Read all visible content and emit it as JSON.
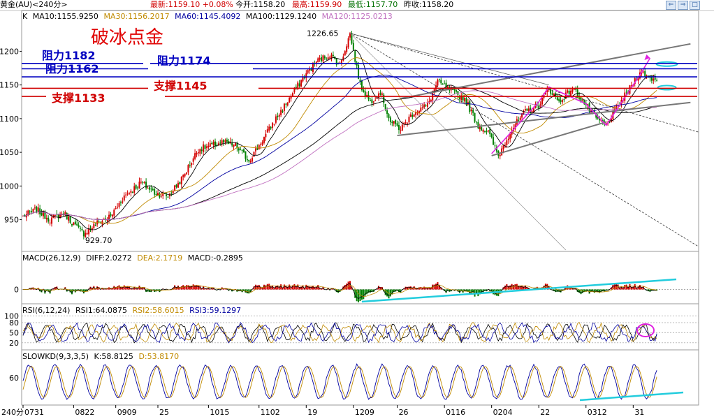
{
  "header": {
    "symbol": "黄金(AU)<240分>",
    "latest": "最新:1159.10 +0.08%",
    "open": "今开:1158.20",
    "high": "最高:1159.90",
    "low": "最低:1157.70",
    "prev_close": "昨收:1158.20"
  },
  "nav_buttons": [
    "⇐",
    "⇒",
    "□"
  ],
  "price_panel": {
    "label": "K",
    "ma": [
      {
        "text": "MA10:1155.9250",
        "color": "#000000"
      },
      {
        "text": "MA30:1156.2017",
        "color": "#c08a00"
      },
      {
        "text": "MA60:1145.4092",
        "color": "#0000a0"
      },
      {
        "text": "MA100:1129.1240",
        "color": "#000000"
      },
      {
        "text": "MA120:1125.0213",
        "color": "#c070c0"
      }
    ],
    "title": "破冰点金",
    "high_label": "1226.65",
    "low_label": "929.70",
    "levels": [
      {
        "label": "阻力1182",
        "value": 1182,
        "color": "#0000c0"
      },
      {
        "label": "阻力1174",
        "value": 1174,
        "color": "#0000c0"
      },
      {
        "label": "阻力1162",
        "value": 1162,
        "color": "#0000c0"
      },
      {
        "label": "支撑1145",
        "value": 1145,
        "color": "#d00000"
      },
      {
        "label": "支撑1133",
        "value": 1133,
        "color": "#d00000"
      }
    ]
  },
  "macd_panel": {
    "labels": [
      {
        "text": "MACD(26,12,9)",
        "color": "#000000"
      },
      {
        "text": "DIFF:2.0272",
        "color": "#000000"
      },
      {
        "text": "DEA:2.1719",
        "color": "#c08a00"
      },
      {
        "text": "MACD:-0.2895",
        "color": "#000000"
      }
    ]
  },
  "rsi_panel": {
    "labels": [
      {
        "text": "RSI(6,12,24)",
        "color": "#000000"
      },
      {
        "text": "RSI1:64.0875",
        "color": "#000000"
      },
      {
        "text": "RSI2:58.6015",
        "color": "#c08a00"
      },
      {
        "text": "RSI3:59.1297",
        "color": "#0000a0"
      }
    ]
  },
  "kd_panel": {
    "labels": [
      {
        "text": "SLOWKD(9,3,3,5)",
        "color": "#000000"
      },
      {
        "text": "K:58.8125",
        "color": "#000000"
      },
      {
        "text": "D:53.8170",
        "color": "#c08a00"
      }
    ]
  },
  "chart_data": {
    "type": "candlestick",
    "title": "破冰点金",
    "period": "240分",
    "price_axis_ticks": [
      950,
      1000,
      1050,
      1100,
      1150,
      1200
    ],
    "macd_axis_ticks": [
      0
    ],
    "rsi_axis_ticks": [
      20,
      50,
      80,
      100
    ],
    "kd_axis_ticks": [
      60
    ],
    "x_tick_labels": [
      "0731",
      "0822",
      "0909",
      "25",
      "1015",
      "1102",
      "19",
      "1209",
      "26",
      "0116",
      "0204",
      "22",
      "0312",
      "31"
    ],
    "x_tick_index": [
      0,
      30,
      55,
      80,
      110,
      140,
      168,
      196,
      222,
      250,
      278,
      306,
      334,
      362
    ],
    "x_range": [
      0,
      400
    ],
    "price_range": [
      905,
      1245
    ],
    "anchors": [
      [
        0,
        955
      ],
      [
        8,
        965
      ],
      [
        16,
        950
      ],
      [
        24,
        960
      ],
      [
        32,
        938
      ],
      [
        36,
        930
      ],
      [
        44,
        945
      ],
      [
        52,
        955
      ],
      [
        60,
        985
      ],
      [
        70,
        1005
      ],
      [
        78,
        990
      ],
      [
        86,
        985
      ],
      [
        94,
        1010
      ],
      [
        104,
        1055
      ],
      [
        112,
        1060
      ],
      [
        118,
        1065
      ],
      [
        126,
        1060
      ],
      [
        134,
        1038
      ],
      [
        140,
        1060
      ],
      [
        150,
        1100
      ],
      [
        158,
        1130
      ],
      [
        166,
        1160
      ],
      [
        174,
        1185
      ],
      [
        182,
        1195
      ],
      [
        188,
        1180
      ],
      [
        194,
        1226
      ],
      [
        200,
        1150
      ],
      [
        206,
        1125
      ],
      [
        212,
        1140
      ],
      [
        218,
        1095
      ],
      [
        224,
        1085
      ],
      [
        232,
        1110
      ],
      [
        240,
        1120
      ],
      [
        246,
        1155
      ],
      [
        254,
        1140
      ],
      [
        262,
        1130
      ],
      [
        270,
        1090
      ],
      [
        276,
        1080
      ],
      [
        282,
        1045
      ],
      [
        290,
        1085
      ],
      [
        298,
        1110
      ],
      [
        306,
        1120
      ],
      [
        312,
        1145
      ],
      [
        318,
        1125
      ],
      [
        326,
        1145
      ],
      [
        334,
        1120
      ],
      [
        340,
        1100
      ],
      [
        346,
        1090
      ],
      [
        352,
        1115
      ],
      [
        360,
        1145
      ],
      [
        366,
        1170
      ],
      [
        372,
        1160
      ],
      [
        376,
        1159
      ]
    ],
    "ma_lengths": [
      10,
      30,
      60,
      100,
      120
    ],
    "annotation_levels": [
      1182,
      1174,
      1162,
      1145,
      1133
    ]
  }
}
